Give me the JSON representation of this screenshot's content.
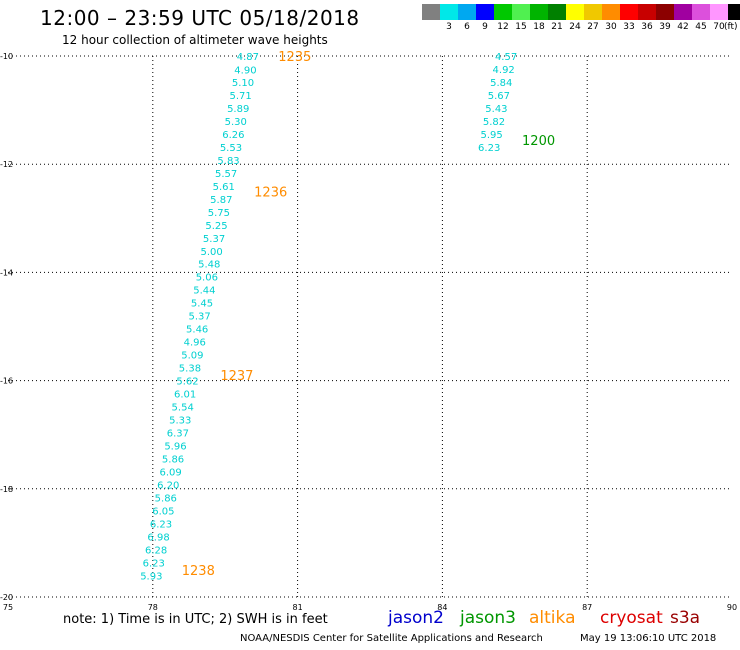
{
  "header": {
    "title": "12:00 – 23:59 UTC 05/18/2018",
    "subtitle": "12 hour collection of altimeter wave heights"
  },
  "color_scale": {
    "unit": "(ft)",
    "items": [
      {
        "label": "",
        "color": "#808080"
      },
      {
        "label": "3",
        "color": "#00e8e8"
      },
      {
        "label": "6",
        "color": "#00a8f0"
      },
      {
        "label": "9",
        "color": "#0000ff"
      },
      {
        "label": "12",
        "color": "#00c800"
      },
      {
        "label": "15",
        "color": "#50f050"
      },
      {
        "label": "18",
        "color": "#00b400"
      },
      {
        "label": "21",
        "color": "#008000"
      },
      {
        "label": "24",
        "color": "#ffff00"
      },
      {
        "label": "27",
        "color": "#f0c800"
      },
      {
        "label": "30",
        "color": "#ff8c00"
      },
      {
        "label": "33",
        "color": "#ff0000"
      },
      {
        "label": "36",
        "color": "#c80000"
      },
      {
        "label": "39",
        "color": "#8c0000"
      },
      {
        "label": "42",
        "color": "#a000a0"
      },
      {
        "label": "45",
        "color": "#dc50dc"
      },
      {
        "label": "70",
        "color": "#ff96ff"
      },
      {
        "label": "",
        "color": "#000000"
      }
    ]
  },
  "footer": {
    "note": "note:  1) Time is in UTC;  2) SWH is in feet",
    "credit": "NOAA/NESDIS Center for Satellite Applications and Research",
    "timestamp": "May 19 13:06:10 UTC 2018",
    "legend": [
      {
        "label": "jason2",
        "color": "#0000cc"
      },
      {
        "label": "jason3",
        "color": "#009600"
      },
      {
        "label": "altika",
        "color": "#ff8c00"
      },
      {
        "label": "cryosat",
        "color": "#dd0000"
      },
      {
        "label": "s3a",
        "color": "#990000"
      }
    ]
  },
  "chart_data": {
    "type": "scatter",
    "title": "12:00 – 23:59 UTC 05/18/2018",
    "xlabel": "",
    "ylabel": "",
    "xlim": [
      75,
      90
    ],
    "ylim": [
      -20,
      -10
    ],
    "x_ticks": [
      "75",
      "78",
      "81",
      "84",
      "87",
      "90"
    ],
    "y_ticks": [
      "-10",
      "-12",
      "-14",
      "-16",
      "-18",
      "-20"
    ],
    "grid": true,
    "value_color": "#00d0d0",
    "series": [
      {
        "name": "altika",
        "color": "#ff8c00",
        "points": [
          {
            "x": 80.2,
            "y": -10.0,
            "label": "4.87"
          },
          {
            "x": 80.15,
            "y": -10.25,
            "label": "4.90"
          },
          {
            "x": 80.1,
            "y": -10.48,
            "label": "5.10"
          },
          {
            "x": 80.05,
            "y": -10.72,
            "label": "5.71"
          },
          {
            "x": 80.0,
            "y": -10.96,
            "label": "5.89"
          },
          {
            "x": 79.95,
            "y": -11.2,
            "label": "5.30"
          },
          {
            "x": 79.9,
            "y": -11.44,
            "label": "6.26"
          },
          {
            "x": 79.85,
            "y": -11.68,
            "label": "5.53"
          },
          {
            "x": 79.8,
            "y": -11.92,
            "label": "5.83"
          },
          {
            "x": 79.75,
            "y": -12.16,
            "label": "5.57"
          },
          {
            "x": 79.7,
            "y": -12.4,
            "label": "5.61"
          },
          {
            "x": 79.65,
            "y": -12.64,
            "label": "5.87"
          },
          {
            "x": 79.6,
            "y": -12.88,
            "label": "5.75"
          },
          {
            "x": 79.55,
            "y": -13.12,
            "label": "5.25"
          },
          {
            "x": 79.5,
            "y": -13.36,
            "label": "5.37"
          },
          {
            "x": 79.45,
            "y": -13.6,
            "label": "5.00"
          },
          {
            "x": 79.4,
            "y": -13.84,
            "label": "5.48"
          },
          {
            "x": 79.35,
            "y": -14.08,
            "label": "5.06"
          },
          {
            "x": 79.3,
            "y": -14.32,
            "label": "5.44"
          },
          {
            "x": 79.25,
            "y": -14.56,
            "label": "5.45"
          },
          {
            "x": 79.2,
            "y": -14.8,
            "label": "5.37"
          },
          {
            "x": 79.15,
            "y": -15.04,
            "label": "5.46"
          },
          {
            "x": 79.1,
            "y": -15.28,
            "label": "4.96"
          },
          {
            "x": 79.05,
            "y": -15.52,
            "label": "5.09"
          },
          {
            "x": 79.0,
            "y": -15.76,
            "label": "5.38"
          },
          {
            "x": 78.95,
            "y": -16.0,
            "label": "5.62"
          },
          {
            "x": 78.9,
            "y": -16.24,
            "label": "6.01"
          },
          {
            "x": 78.85,
            "y": -16.48,
            "label": "5.54"
          },
          {
            "x": 78.8,
            "y": -16.72,
            "label": "5.33"
          },
          {
            "x": 78.75,
            "y": -16.96,
            "label": "6.37"
          },
          {
            "x": 78.7,
            "y": -17.2,
            "label": "5.96"
          },
          {
            "x": 78.65,
            "y": -17.44,
            "label": "5.86"
          },
          {
            "x": 78.6,
            "y": -17.68,
            "label": "6.09"
          },
          {
            "x": 78.55,
            "y": -17.92,
            "label": "6.20"
          },
          {
            "x": 78.5,
            "y": -18.16,
            "label": "5.86"
          },
          {
            "x": 78.45,
            "y": -18.4,
            "label": "6.05"
          },
          {
            "x": 78.4,
            "y": -18.64,
            "label": "6.23"
          },
          {
            "x": 78.35,
            "y": -18.88,
            "label": "6.98"
          },
          {
            "x": 78.3,
            "y": -19.12,
            "label": "6.28"
          },
          {
            "x": 78.25,
            "y": -19.36,
            "label": "6.23"
          },
          {
            "x": 78.2,
            "y": -19.6,
            "label": "5.93"
          }
        ]
      },
      {
        "name": "jason3",
        "color": "#009600",
        "points": [
          {
            "x": 85.55,
            "y": -10.0,
            "label": "4.57"
          },
          {
            "x": 85.5,
            "y": -10.24,
            "label": "4.92"
          },
          {
            "x": 85.45,
            "y": -10.48,
            "label": "5.84"
          },
          {
            "x": 85.4,
            "y": -10.72,
            "label": "5.67"
          },
          {
            "x": 85.35,
            "y": -10.96,
            "label": "5.43"
          },
          {
            "x": 85.3,
            "y": -11.2,
            "label": "5.82"
          },
          {
            "x": 85.25,
            "y": -11.44,
            "label": "5.95"
          },
          {
            "x": 85.2,
            "y": -11.68,
            "label": "6.23"
          }
        ]
      }
    ],
    "annotations": [
      {
        "text": "1235",
        "x": 80.6,
        "y": -10.0,
        "color": "#ff8c00"
      },
      {
        "text": "1236",
        "x": 80.1,
        "y": -12.5,
        "color": "#ff8c00"
      },
      {
        "text": "1237",
        "x": 79.4,
        "y": -15.9,
        "color": "#ff8c00"
      },
      {
        "text": "1238",
        "x": 78.6,
        "y": -19.5,
        "color": "#ff8c00"
      },
      {
        "text": "1200",
        "x": 85.65,
        "y": -11.55,
        "color": "#009600"
      }
    ]
  }
}
